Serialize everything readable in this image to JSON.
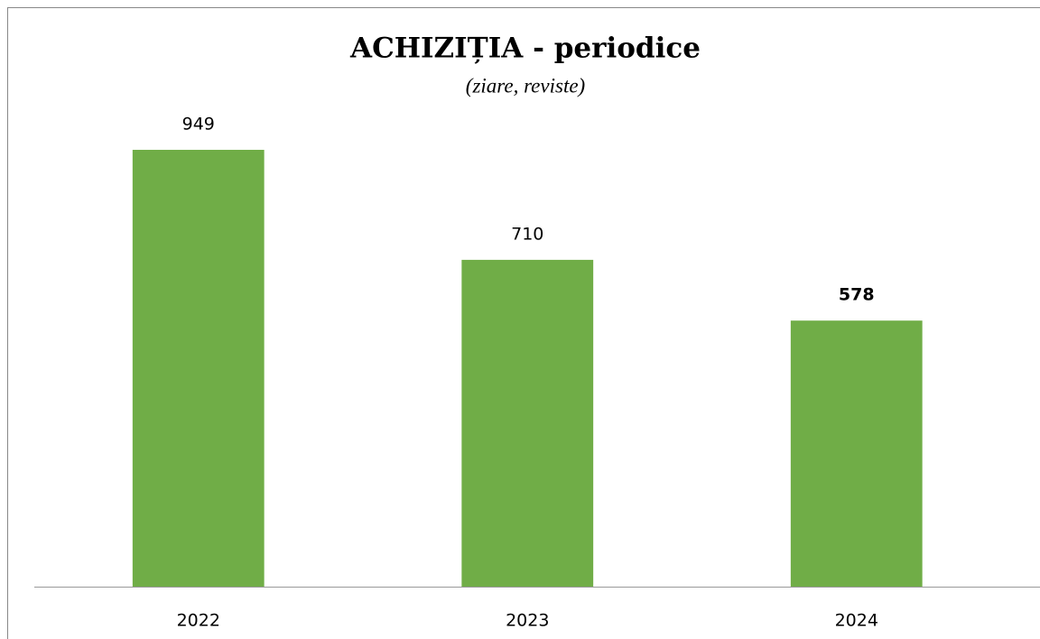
{
  "chart_data": {
    "type": "bar",
    "title": "ACHIZIȚIA - periodice",
    "subtitle": "(ziare, reviste)",
    "categories": [
      "2022",
      "2023",
      "2024"
    ],
    "values": [
      949,
      710,
      578
    ],
    "color": "#70ad47",
    "value_label_bold": [
      false,
      false,
      true
    ],
    "ylim": [
      0,
      1000
    ]
  }
}
